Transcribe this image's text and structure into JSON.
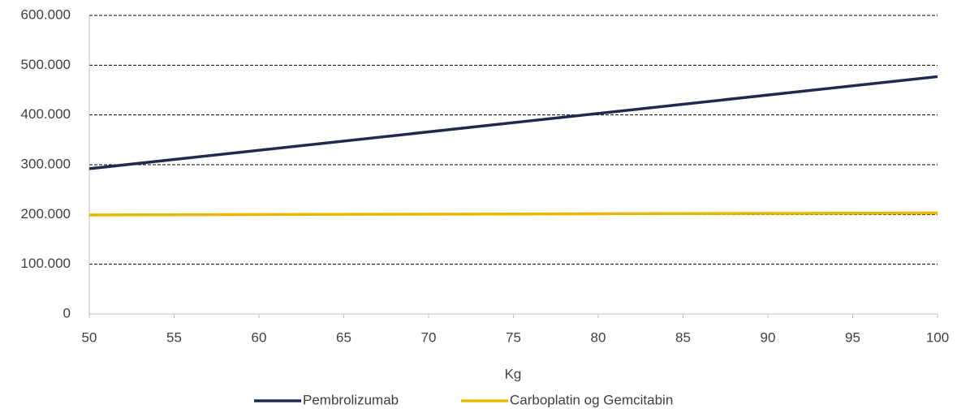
{
  "chart_data": {
    "type": "line",
    "x_label": "Kg",
    "x": [
      50,
      100
    ],
    "series": [
      {
        "name": "Pembrolizumab",
        "color": "#1f2a4e",
        "values": [
          292000,
          477000
        ]
      },
      {
        "name": "Carboplatin og Gemcitabin",
        "color": "#e6b800",
        "values": [
          199000,
          203000
        ]
      }
    ],
    "xlim": [
      50,
      100
    ],
    "xticks": [
      50,
      55,
      60,
      65,
      70,
      75,
      80,
      85,
      90,
      95,
      100
    ],
    "ylim": [
      0,
      600000
    ],
    "yticks": [
      0,
      {
        "value": 100000,
        "label": "100.000"
      },
      {
        "value": 200000,
        "label": "200.000"
      },
      {
        "value": 300000,
        "label": "300.000"
      },
      {
        "value": 400000,
        "label": "400.000"
      },
      {
        "value": 500000,
        "label": "500.000"
      },
      {
        "value": 600000,
        "label": "600.000"
      }
    ],
    "grid": true,
    "legend": "bottom"
  }
}
